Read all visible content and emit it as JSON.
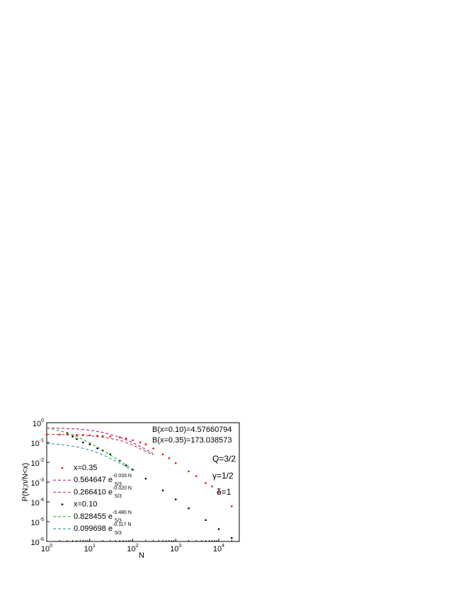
{
  "chart_data": {
    "type": "line",
    "xlabel": "N",
    "ylabel": "P(N;n/N<x)",
    "xscale": "log",
    "yscale": "log",
    "xlim": [
      1,
      30000
    ],
    "ylim": [
      1e-06,
      1
    ],
    "xticks": [
      {
        "value": 1,
        "label": "10",
        "exponent": "0"
      },
      {
        "value": 10,
        "label": "10",
        "exponent": "1"
      },
      {
        "value": 100,
        "label": "10",
        "exponent": "2"
      },
      {
        "value": 1000,
        "label": "10",
        "exponent": "3"
      },
      {
        "value": 10000,
        "label": "10",
        "exponent": "4"
      }
    ],
    "yticks": [
      {
        "value": 1,
        "label": "10",
        "exponent": "0"
      },
      {
        "value": 0.1,
        "label": "10",
        "exponent": "-1"
      },
      {
        "value": 0.01,
        "label": "10",
        "exponent": "-2"
      },
      {
        "value": 0.001,
        "label": "10",
        "exponent": "-3"
      },
      {
        "value": 0.0001,
        "label": "10",
        "exponent": "-4"
      },
      {
        "value": 1e-05,
        "label": "10",
        "exponent": "-5"
      },
      {
        "value": 1e-06,
        "label": "10",
        "exponent": "-6"
      }
    ],
    "annotations": [
      "B(x=0.10)=4.57660794",
      "B(x=0.35)=173.038573",
      "Q=3/2",
      "γ=1/2",
      "δ=1"
    ],
    "series": [
      {
        "name": "x=0.35",
        "color": "#ff0000",
        "style": "dots",
        "x": [
          1,
          2,
          3,
          5,
          7,
          10,
          15,
          20,
          30,
          50,
          70,
          100,
          150,
          200,
          300,
          500,
          700,
          1000,
          2000,
          3000,
          5000,
          7000,
          10000,
          20000
        ],
        "values": [
          0.25,
          0.25,
          0.25,
          0.24,
          0.24,
          0.23,
          0.22,
          0.21,
          0.2,
          0.18,
          0.16,
          0.13,
          0.1,
          0.08,
          0.05,
          0.025,
          0.016,
          0.009,
          0.0035,
          0.002,
          0.0009,
          0.0006,
          0.0003,
          6e-05
        ]
      },
      {
        "name": "0.564647 e",
        "sub": "5/3",
        "sup": "-0.033 N",
        "color": "#a000a0",
        "style": "dashed",
        "x": [
          1,
          2,
          5,
          10,
          20,
          50,
          100,
          200,
          300
        ],
        "values": [
          0.546,
          0.529,
          0.483,
          0.419,
          0.327,
          0.186,
          0.0987,
          0.045,
          0.027
        ]
      },
      {
        "name": "0.266410 e",
        "sub": "5/3",
        "sup": "-0.020 N",
        "color": "#a03030",
        "style": "dashed",
        "x": [
          1,
          2,
          5,
          10,
          20,
          50,
          100,
          200,
          300
        ],
        "values": [
          0.261,
          0.256,
          0.242,
          0.221,
          0.187,
          0.13,
          0.0749,
          0.0357,
          0.0238
        ]
      },
      {
        "name": "x=0.10",
        "color": "#000000",
        "style": "dots",
        "x": [
          3,
          4,
          5,
          7,
          10,
          15,
          20,
          30,
          50,
          70,
          100,
          200,
          500,
          1000,
          2000,
          5000,
          10000,
          20000
        ],
        "values": [
          0.3,
          0.2,
          0.15,
          0.1,
          0.08,
          0.05,
          0.04,
          0.025,
          0.012,
          0.007,
          0.0042,
          0.0015,
          0.00038,
          0.000134,
          4.7e-05,
          1.2e-05,
          4.2e-06,
          1.5e-06
        ]
      },
      {
        "name": "0.828455 e",
        "sub": "5/3",
        "sup": "-0.480 N",
        "color": "#20a020",
        "style": "dashed",
        "x": [
          1,
          2,
          3,
          5,
          10,
          20,
          50,
          70,
          100
        ],
        "values": [
          0.546,
          0.394,
          0.302,
          0.198,
          0.0962,
          0.0412,
          0.0118,
          0.00732,
          0.00437
        ]
      },
      {
        "name": "0.099698 e",
        "sub": "5/3",
        "sup": "-0.117 N",
        "color": "#2080a0",
        "style": "dashed",
        "x": [
          1,
          2,
          5,
          10,
          20,
          50,
          100
        ],
        "values": [
          0.089,
          0.0802,
          0.0608,
          0.042,
          0.0243,
          0.0092,
          0.00382
        ]
      }
    ]
  }
}
